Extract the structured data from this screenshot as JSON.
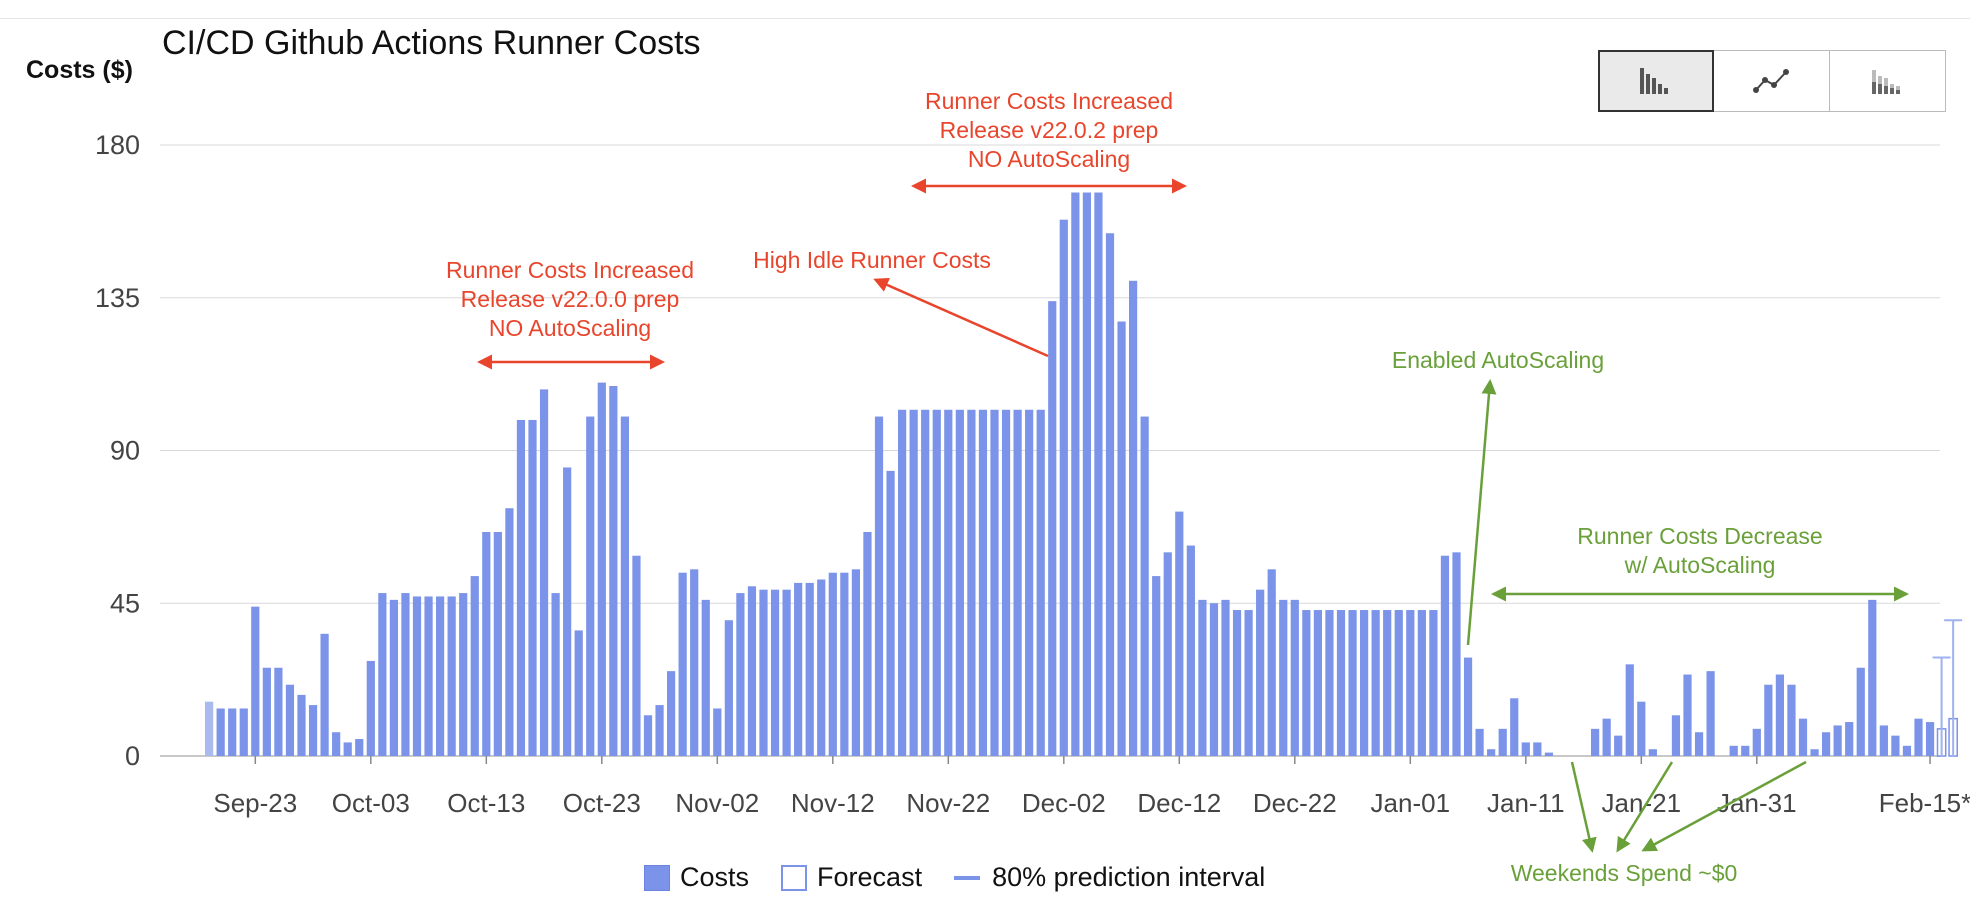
{
  "title": "CI/CD Github Actions Runner Costs",
  "y_axis_label": "Costs ($)",
  "view_buttons": [
    {
      "icon": "bar-chart-icon",
      "active": true
    },
    {
      "icon": "line-chart-icon",
      "active": false
    },
    {
      "icon": "stacked-bar-chart-icon",
      "active": false
    }
  ],
  "legend": {
    "costs": "Costs",
    "forecast": "Forecast",
    "interval": "80% prediction interval"
  },
  "colors": {
    "bar": "#7b93e8",
    "forecast_bar": "#ffffff",
    "red_annotation": "#e8452c",
    "green_annotation": "#6aa03a",
    "grid": "#d9d9d9"
  },
  "chart_data": {
    "type": "bar",
    "ylabel": "Costs ($)",
    "title": "CI/CD Github Actions Runner Costs",
    "ylim": [
      0,
      180
    ],
    "yticks": [
      0,
      45,
      90,
      135,
      180
    ],
    "grid": true,
    "legend_position": "bottom",
    "x_tick_labels": [
      "Sep-23",
      "Oct-03",
      "Oct-13",
      "Oct-23",
      "Nov-02",
      "Nov-12",
      "Nov-22",
      "Dec-02",
      "Dec-12",
      "Dec-22",
      "Jan-01",
      "Jan-11",
      "Jan-21",
      "Jan-31",
      "Feb-15**"
    ],
    "first_bar_date": "Sep-19",
    "series": [
      {
        "name": "Costs",
        "values": [
          16,
          14,
          14,
          14,
          44,
          26,
          26,
          21,
          18,
          15,
          36,
          7,
          4,
          5,
          28,
          48,
          46,
          48,
          47,
          47,
          47,
          47,
          48,
          53,
          66,
          66,
          73,
          99,
          99,
          108,
          48,
          85,
          37,
          100,
          110,
          109,
          100,
          59,
          12,
          15,
          25,
          54,
          55,
          46,
          14,
          40,
          48,
          50,
          49,
          49,
          49,
          51,
          51,
          52,
          54,
          54,
          55,
          66,
          100,
          84,
          102,
          102,
          102,
          102,
          102,
          102,
          102,
          102,
          102,
          102,
          102,
          102,
          102,
          134,
          158,
          166,
          166,
          166,
          154,
          128,
          140,
          100,
          53,
          60,
          72,
          62,
          46,
          45,
          46,
          43,
          43,
          49,
          55,
          46,
          46,
          43,
          43,
          43,
          43,
          43,
          43,
          43,
          43,
          43,
          43,
          43,
          43,
          59,
          60,
          29,
          8,
          2,
          8,
          17,
          4,
          4,
          1,
          0,
          0,
          0,
          8,
          11,
          6,
          27,
          16,
          2,
          0,
          12,
          24,
          7,
          25,
          0,
          3,
          3,
          8,
          21,
          24,
          21,
          11,
          2,
          7,
          9,
          10,
          26,
          46,
          9,
          6,
          3,
          11,
          10
        ],
        "first_value_faded": true
      },
      {
        "name": "Forecast",
        "values": [
          8,
          11
        ],
        "interval_upper": [
          29,
          40
        ]
      }
    ],
    "annotations": [
      {
        "text": "Runner Costs Increased\nRelease v22.0.0 prep\nNO AutoScaling",
        "color": "red"
      },
      {
        "text": "High Idle Runner Costs",
        "color": "red"
      },
      {
        "text": "Runner Costs Increased\nRelease v22.0.2 prep\nNO AutoScaling",
        "color": "red"
      },
      {
        "text": "Enabled AutoScaling",
        "color": "green"
      },
      {
        "text": "Runner Costs Decrease\nw/ AutoScaling",
        "color": "green"
      },
      {
        "text": "Weekends Spend ~$0",
        "color": "green"
      }
    ]
  }
}
